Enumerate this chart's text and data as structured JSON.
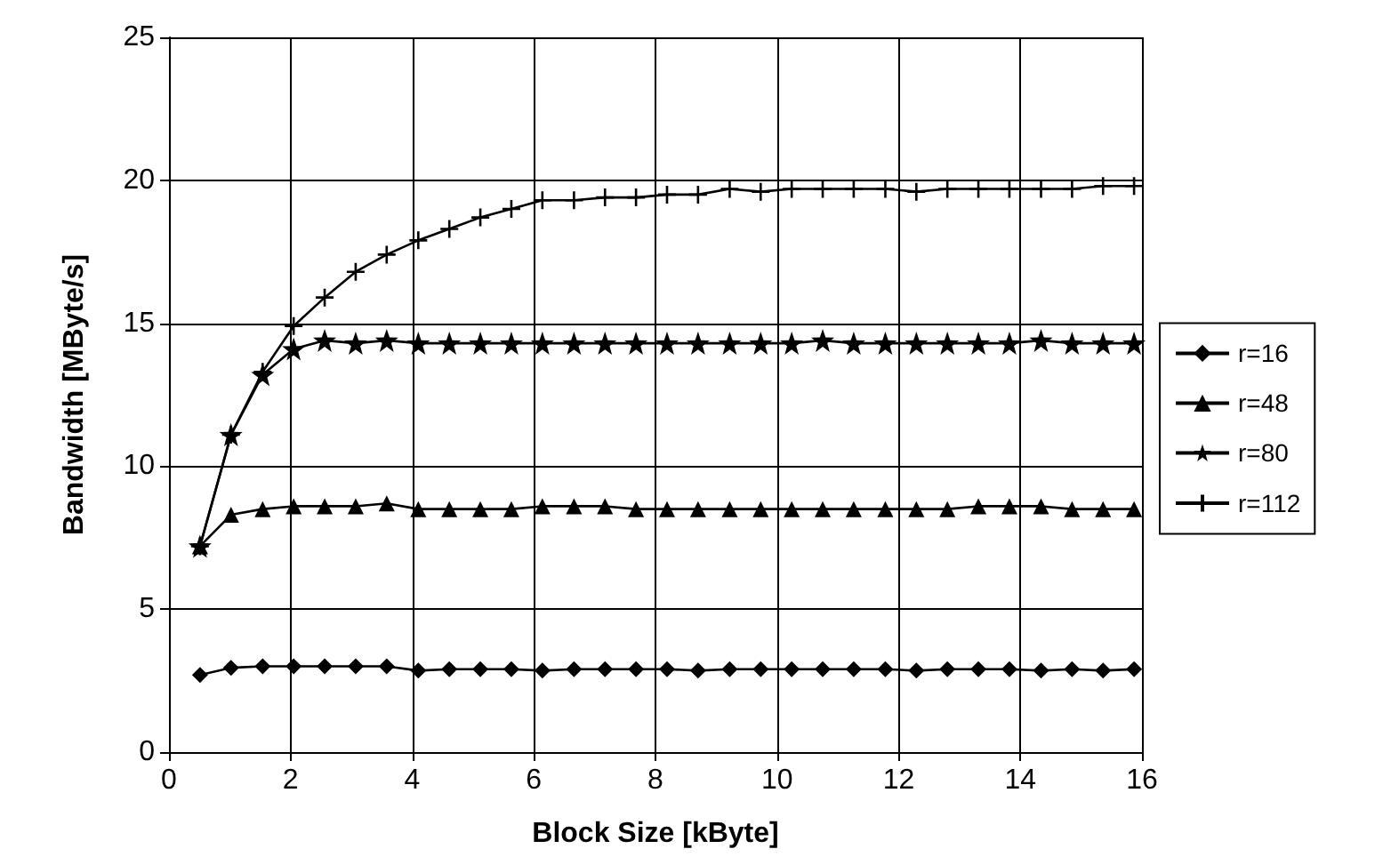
{
  "chart_data": {
    "type": "line",
    "xlabel": "Block Size [kByte]",
    "ylabel": "Bandwidth [MByte/s]",
    "x": [
      0.51,
      1.02,
      1.54,
      2.05,
      2.56,
      3.07,
      3.58,
      4.1,
      4.61,
      5.12,
      5.63,
      6.14,
      6.66,
      7.17,
      7.68,
      8.19,
      8.7,
      9.22,
      9.73,
      10.24,
      10.75,
      11.26,
      11.78,
      12.29,
      12.8,
      13.31,
      13.82,
      14.34,
      14.85,
      15.36,
      15.87
    ],
    "series": [
      {
        "name": "r=16",
        "color": "#000000",
        "marker": "diamond",
        "values": [
          2.7,
          2.95,
          3.0,
          3.0,
          3.0,
          3.0,
          3.0,
          2.85,
          2.9,
          2.9,
          2.9,
          2.85,
          2.9,
          2.9,
          2.9,
          2.9,
          2.85,
          2.9,
          2.9,
          2.9,
          2.9,
          2.9,
          2.9,
          2.85,
          2.9,
          2.9,
          2.9,
          2.85,
          2.9,
          2.85,
          2.9
        ]
      },
      {
        "name": "r=48",
        "color": "#000000",
        "marker": "triangle",
        "values": [
          7.2,
          8.3,
          8.5,
          8.6,
          8.6,
          8.6,
          8.7,
          8.5,
          8.5,
          8.5,
          8.5,
          8.6,
          8.6,
          8.6,
          8.5,
          8.5,
          8.5,
          8.5,
          8.5,
          8.5,
          8.5,
          8.5,
          8.5,
          8.5,
          8.5,
          8.6,
          8.6,
          8.6,
          8.5,
          8.5,
          8.5
        ]
      },
      {
        "name": "r=80",
        "color": "#000000",
        "marker": "star",
        "values": [
          7.2,
          11.1,
          13.2,
          14.1,
          14.4,
          14.3,
          14.4,
          14.3,
          14.3,
          14.3,
          14.3,
          14.3,
          14.3,
          14.3,
          14.3,
          14.3,
          14.3,
          14.3,
          14.3,
          14.3,
          14.4,
          14.3,
          14.3,
          14.3,
          14.3,
          14.3,
          14.3,
          14.4,
          14.3,
          14.3,
          14.3
        ]
      },
      {
        "name": "r=112",
        "color": "#000000",
        "marker": "cross",
        "values": [
          7.2,
          11.1,
          13.3,
          14.9,
          15.9,
          16.8,
          17.4,
          17.9,
          18.3,
          18.7,
          19.0,
          19.3,
          19.3,
          19.4,
          19.4,
          19.5,
          19.5,
          19.7,
          19.6,
          19.7,
          19.7,
          19.7,
          19.7,
          19.6,
          19.7,
          19.7,
          19.7,
          19.7,
          19.7,
          19.8,
          19.8
        ]
      }
    ],
    "xlim": [
      0,
      16
    ],
    "xticks": [
      0,
      2,
      4,
      6,
      8,
      10,
      12,
      14,
      16
    ],
    "ylim": [
      0,
      25
    ],
    "yticks": [
      0,
      5,
      10,
      15,
      20,
      25
    ],
    "grid": true,
    "legend": "right",
    "line_style": "solid"
  }
}
